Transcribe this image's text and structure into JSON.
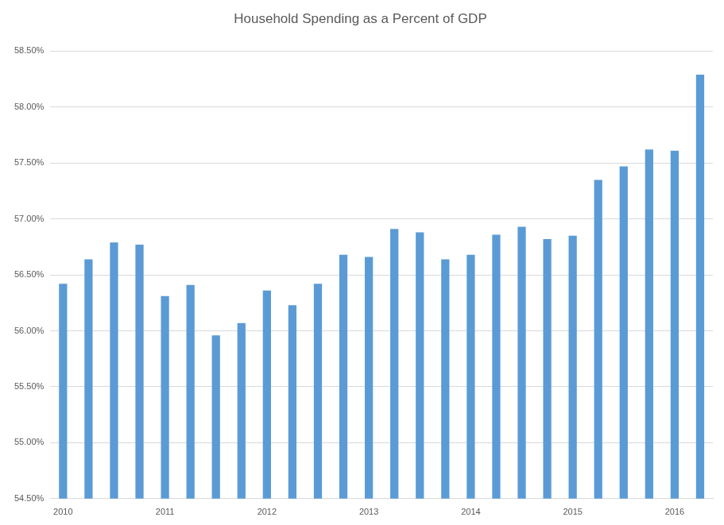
{
  "chart_data": {
    "type": "bar",
    "title": "Household Spending as a Percent of GDP",
    "categories": [
      "2010",
      null,
      null,
      null,
      "2011",
      null,
      null,
      null,
      "2012",
      null,
      null,
      null,
      "2013",
      null,
      null,
      null,
      "2014",
      null,
      null,
      null,
      "2015",
      null,
      null,
      null,
      "2016",
      null
    ],
    "values": [
      56.42,
      56.64,
      56.79,
      56.77,
      56.31,
      56.41,
      55.96,
      56.07,
      56.36,
      56.23,
      56.42,
      56.68,
      56.66,
      56.91,
      56.88,
      56.64,
      56.68,
      56.86,
      56.93,
      56.82,
      56.85,
      57.35,
      57.47,
      57.62,
      57.61,
      58.29
    ],
    "color": "#5b9bd5",
    "ylim": [
      54.5,
      58.5
    ],
    "yticks": [
      {
        "value": 54.5,
        "label": "54.50%"
      },
      {
        "value": 55,
        "label": "55.00%"
      },
      {
        "value": 55.5,
        "label": "55.50%"
      },
      {
        "value": 56,
        "label": "56.00%"
      },
      {
        "value": 56.5,
        "label": "56.50%"
      },
      {
        "value": 57,
        "label": "57.00%"
      },
      {
        "value": 57.5,
        "label": "57.50%"
      },
      {
        "value": 58,
        "label": "58.00%"
      },
      {
        "value": 58.5,
        "label": "58.50%"
      }
    ],
    "grid": true
  }
}
